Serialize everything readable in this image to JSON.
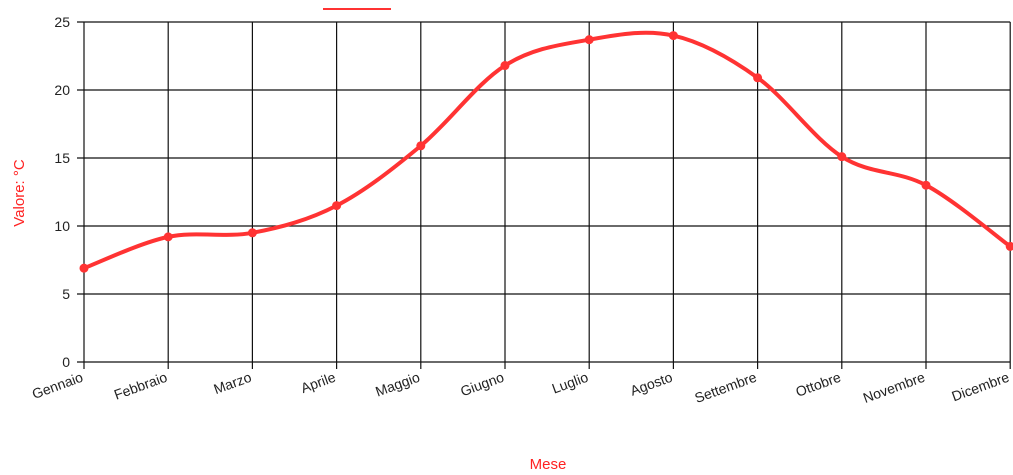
{
  "chart_data": {
    "type": "line",
    "title": "",
    "xlabel": "Mese",
    "ylabel": "Valore: °C",
    "categories": [
      "Gennaio",
      "Febbraio",
      "Marzo",
      "Aprile",
      "Maggio",
      "Giugno",
      "Luglio",
      "Agosto",
      "Settembre",
      "Ottobre",
      "Novembre",
      "Dicembre"
    ],
    "series": [
      {
        "values": [
          6.9,
          9.2,
          9.5,
          11.5,
          15.9,
          21.8,
          23.7,
          24.0,
          20.9,
          15.1,
          13.0,
          8.5
        ]
      }
    ],
    "yticks": [
      "0",
      "5",
      "10",
      "15",
      "20",
      "25"
    ],
    "ylim": [
      0,
      25
    ],
    "grid": true,
    "legend": "top",
    "colors": {
      "series": "#ff3333",
      "axis_title": "#ff2222",
      "grid": "#111111"
    }
  }
}
